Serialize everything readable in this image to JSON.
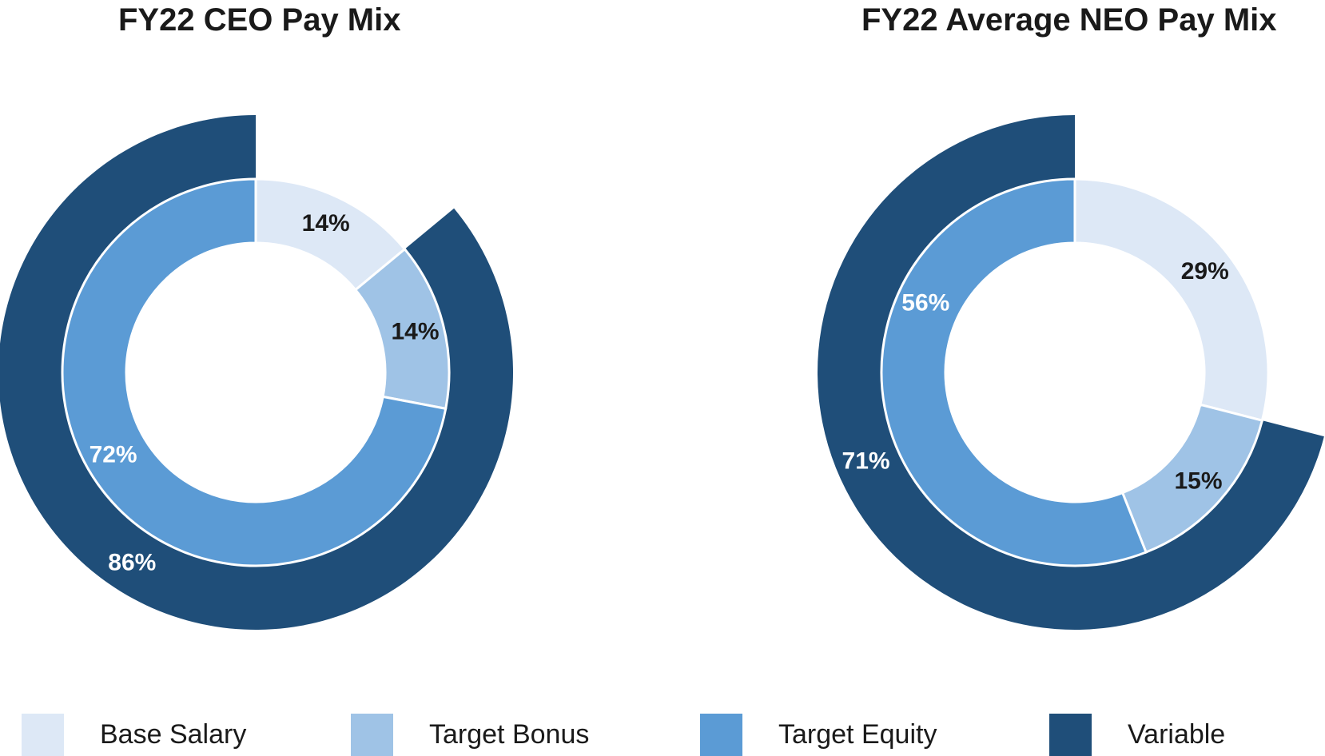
{
  "colors": {
    "base_salary": "#dde8f6",
    "target_bonus": "#9fc3e6",
    "target_equity": "#5b9bd5",
    "variable": "#1f4e79",
    "label_dark": "#1a1a1a",
    "label_light": "#ffffff"
  },
  "legend": [
    {
      "label": "Base Salary",
      "color": "#dde8f6"
    },
    {
      "label": "Target Bonus",
      "color": "#9fc3e6"
    },
    {
      "label": "Target Equity",
      "color": "#5b9bd5"
    },
    {
      "label": "Variable",
      "color": "#1f4e79"
    }
  ],
  "chart_data": [
    {
      "type": "pie",
      "subtype": "double-ring donut",
      "title": "FY22 CEO Pay Mix",
      "inner_ring": [
        {
          "name": "Base Salary",
          "value": 14,
          "label": "14%",
          "label_color": "dark"
        },
        {
          "name": "Target Bonus",
          "value": 14,
          "label": "14%",
          "label_color": "dark"
        },
        {
          "name": "Target Equity",
          "value": 72,
          "label": "72%",
          "label_color": "light"
        }
      ],
      "outer_ring": [
        {
          "name": "Variable",
          "value": 86,
          "label": "86%",
          "label_color": "light"
        }
      ]
    },
    {
      "type": "pie",
      "subtype": "double-ring donut",
      "title": "FY22 Average NEO Pay Mix",
      "inner_ring": [
        {
          "name": "Base Salary",
          "value": 29,
          "label": "29%",
          "label_color": "dark"
        },
        {
          "name": "Target Bonus",
          "value": 15,
          "label": "15%",
          "label_color": "dark"
        },
        {
          "name": "Target Equity",
          "value": 56,
          "label": "56%",
          "label_color": "light"
        }
      ],
      "outer_ring": [
        {
          "name": "Variable",
          "value": 71,
          "label": "71%",
          "label_color": "light"
        }
      ]
    }
  ]
}
